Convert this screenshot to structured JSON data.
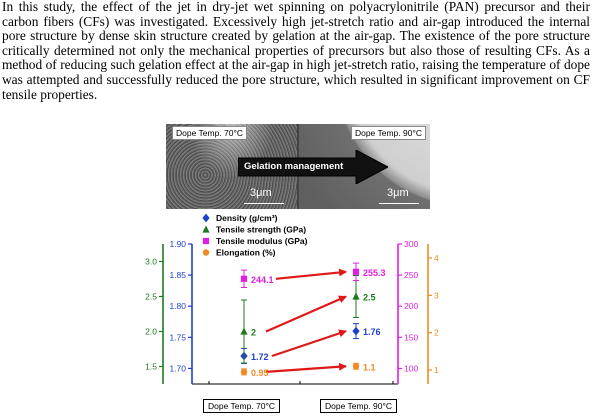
{
  "abstract": "In this study, the effect of the jet in dry-jet wet spinning on polyacrylonitrile (PAN) precursor and their carbon fibers (CFs) was investigated. Excessively high jet-stretch ratio and air-gap introduced the internal pore structure by dense skin structure created by gelation at the air-gap. The existence of the pore structure critically determined not only the mechanical properties of precursors but also those of resulting CFs. As a method of reducing such gelation effect at the air-gap in high jet-stretch ratio, raising the temperature of dope was attempted and successfully reduced the pore structure, which resulted in significant improvement on CF tensile properties.",
  "micrograph": {
    "left_label": "Dope Temp. 70°C",
    "right_label": "Dope Temp. 90°C",
    "arrow_text": "Gelation management",
    "scale_left": "3μm",
    "scale_right": "3μm"
  },
  "colors": {
    "density": "#1f3fcf",
    "tensile_strength": "#1e7a1e",
    "tensile_modulus": "#e020e0",
    "elongation": "#f08a24",
    "arrow": "#e01818"
  },
  "chart_data": {
    "type": "scatter",
    "categories": [
      "Dope Temp. 70°C",
      "Dope Temp. 90°C"
    ],
    "series": [
      {
        "name": "Density (g/cm³)",
        "values": [
          1.72,
          1.76
        ],
        "labels": [
          "1.72",
          "1.76"
        ],
        "axis": "density",
        "marker": "diamond",
        "errors": [
          0.012,
          0.012
        ]
      },
      {
        "name": "Tensile strength (GPa)",
        "values": [
          2.0,
          2.5
        ],
        "labels": [
          "2",
          "2.5"
        ],
        "axis": "strength",
        "marker": "triangle",
        "errors": [
          0.45,
          0.3
        ]
      },
      {
        "name": "Tensile modulus (GPa)",
        "values": [
          244.1,
          255.3
        ],
        "labels": [
          "244.1",
          "255.3"
        ],
        "axis": "modulus",
        "marker": "square",
        "errors": [
          14,
          14
        ]
      },
      {
        "name": "Elongation (%)",
        "values": [
          0.95,
          1.1
        ],
        "labels": [
          "0.95",
          "1.1"
        ],
        "axis": "elongation",
        "marker": "circle",
        "errors": [
          0.08,
          0.08
        ]
      }
    ],
    "axes": {
      "density": {
        "ylim": [
          1.675,
          1.9
        ],
        "ticks": [
          1.7,
          1.75,
          1.8,
          1.85,
          1.9
        ],
        "tick_labels": [
          "1.70",
          "1.75",
          "1.80",
          "1.85",
          "1.90"
        ],
        "side": "left"
      },
      "strength": {
        "ylim": [
          1.25,
          3.25
        ],
        "ticks": [
          1.5,
          2.0,
          2.5,
          3.0
        ],
        "tick_labels": [
          "1.5",
          "2.0",
          "2.5",
          "3.0"
        ],
        "side": "left"
      },
      "modulus": {
        "ylim": [
          75,
          300
        ],
        "ticks": [
          100,
          150,
          200,
          250,
          300
        ],
        "tick_labels": [
          "100",
          "150",
          "200",
          "250",
          "300"
        ],
        "side": "right"
      },
      "elongation": {
        "ylim": [
          0.625,
          4.375
        ],
        "ticks": [
          1,
          2,
          3,
          4
        ],
        "tick_labels": [
          "1",
          "2",
          "3",
          "4"
        ],
        "side": "right"
      }
    },
    "legend_position": "top-left"
  }
}
